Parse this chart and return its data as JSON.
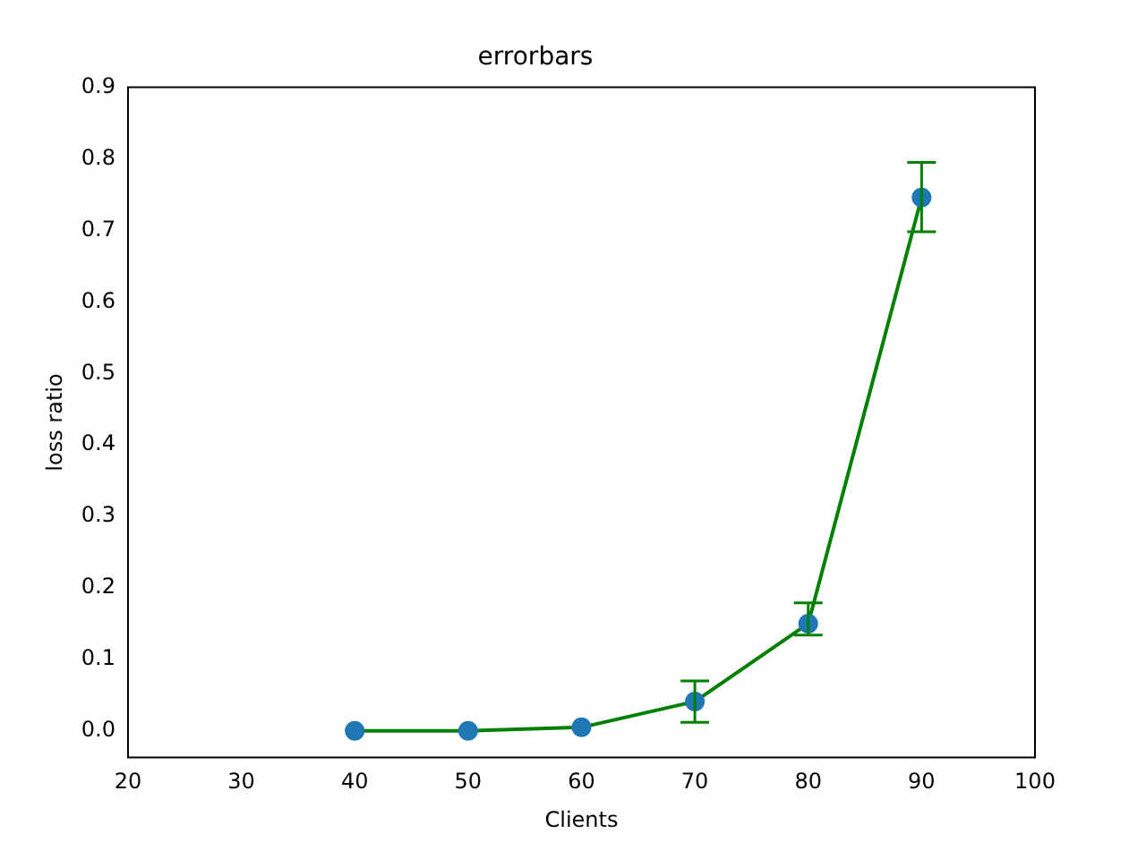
{
  "chart_data": {
    "type": "line",
    "title": "errorbars",
    "xlabel": "Clients",
    "ylabel": "loss ratio",
    "x": [
      40,
      50,
      60,
      70,
      80,
      90
    ],
    "series": [
      {
        "type": "line",
        "marker": "none",
        "color": "#008000",
        "values": [
          0.0,
          0.0,
          0.005,
          0.041,
          0.15,
          0.746
        ],
        "errors": [
          null,
          null,
          null,
          [
            0.012,
            0.07
          ],
          [
            0.134,
            0.179
          ],
          [
            0.698,
            0.795
          ]
        ]
      },
      {
        "type": "scatter",
        "color": "#1f77b4",
        "values": [
          0.0,
          0.0,
          0.005,
          0.041,
          0.15,
          0.746
        ]
      }
    ],
    "marker": "circle",
    "xlim": [
      20,
      100
    ],
    "xticks": [
      20,
      30,
      40,
      50,
      60,
      70,
      80,
      90,
      100
    ],
    "ylim": [
      -0.037,
      0.9
    ],
    "yticks": [
      {
        "value": 0,
        "label": "0.0"
      },
      {
        "value": 0.1,
        "label": "0.1"
      },
      {
        "value": 0.2,
        "label": "0.2"
      },
      {
        "value": 0.3,
        "label": "0.3"
      },
      {
        "value": 0.4,
        "label": "0.4"
      },
      {
        "value": 0.5,
        "label": "0.5"
      },
      {
        "value": 0.6,
        "label": "0.6"
      },
      {
        "value": 0.7,
        "label": "0.7"
      },
      {
        "value": 0.8,
        "label": "0.8"
      },
      {
        "value": 0.9,
        "label": "0.9"
      }
    ],
    "grid": false,
    "legend": false
  }
}
